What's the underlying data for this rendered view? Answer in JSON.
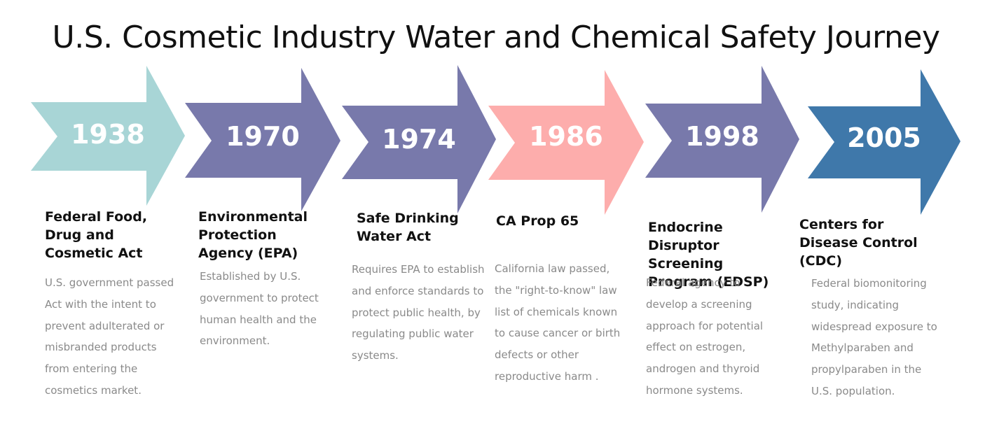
{
  "title": "U.S. Cosmetic Industry Water and Chemical Safety Journey",
  "milestones": [
    {
      "year": "1938",
      "color": "#a8d5d6",
      "heading": "Federal Food, Drug and Cosmetic Act",
      "description": "U.S. government passed Act with the intent to prevent adulterated or misbranded products from entering the cosmetics market."
    },
    {
      "year": "1970",
      "color": "#7879ab",
      "heading": "Environmental Protection Agency (EPA)",
      "description": "Established by U.S. government to protect human health and the environment."
    },
    {
      "year": "1974",
      "color": "#7879ab",
      "heading": "Safe Drinking Water Act",
      "description": "Requires EPA to establish and enforce standards to protect public health, by regulating public water systems."
    },
    {
      "year": "1986",
      "color": "#fdadac",
      "heading": "CA Prop 65",
      "description": "California law passed, the \"right-to-know\" law list of chemicals known to cause cancer or birth defects or other reproductive harm ."
    },
    {
      "year": "1998",
      "color": "#7879ab",
      "heading": "Endocrine Disruptor Screening Program (EDSP)",
      "description": "Federal agency to develop a screening approach  for potential effect on estrogen, androgen and thyroid hormone systems."
    },
    {
      "year": "2005",
      "color": "#3f78aa",
      "heading": "Centers for Disease Control (CDC)",
      "description": "Federal biomonitoring study, indicating widespread exposure to Methylparaben and propylparaben in the U.S. population."
    }
  ]
}
